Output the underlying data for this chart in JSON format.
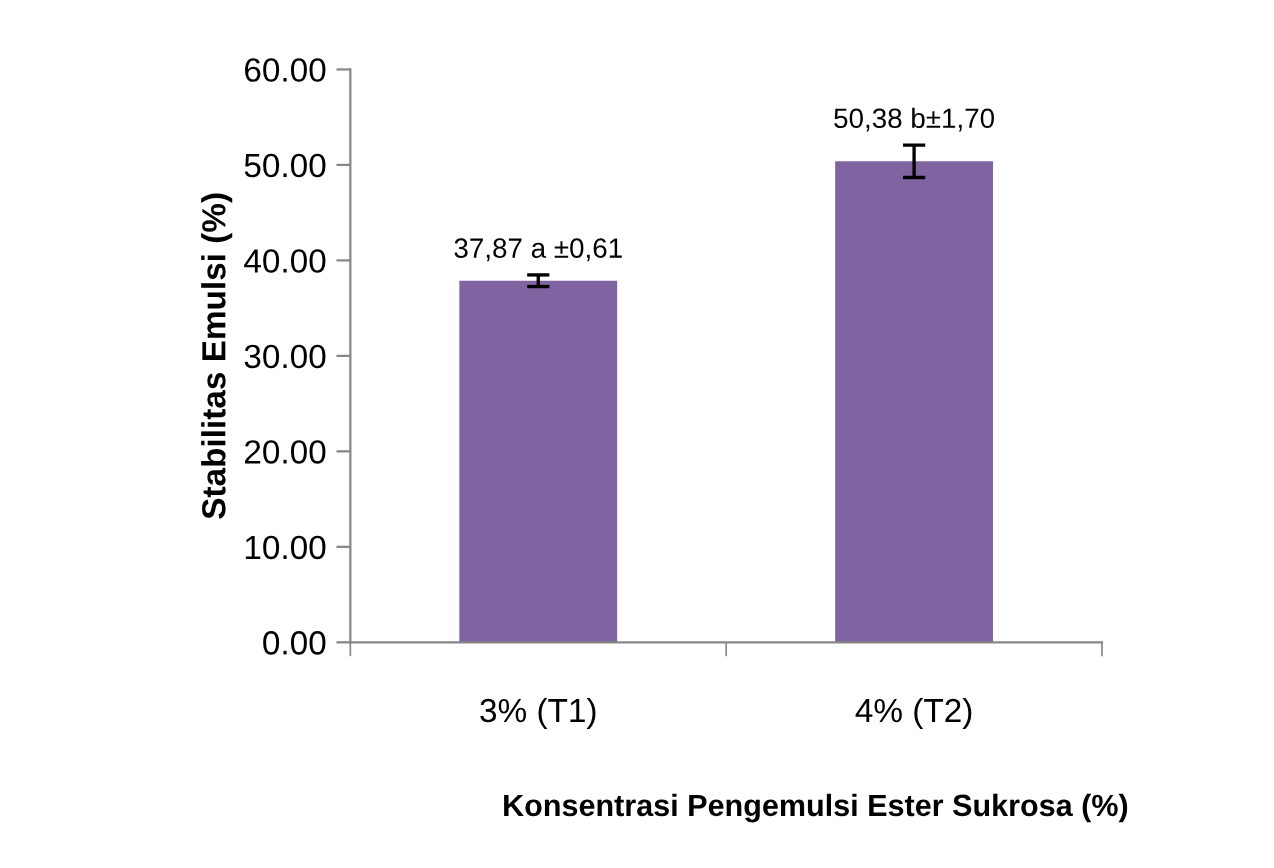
{
  "chart_data": {
    "type": "bar",
    "xlabel": "Konsentrasi Pengemulsi Ester Sukrosa (%)",
    "ylabel": "Stabilitas Emulsi (%)",
    "categories": [
      "3% (T1)",
      "4% (T2)"
    ],
    "values": [
      37.87,
      50.38
    ],
    "errors": [
      0.61,
      1.7
    ],
    "value_labels": [
      "37,87 a ±0,61",
      "50,38 b±1,70"
    ],
    "color": "#8064a2",
    "ylim": [
      0,
      60
    ],
    "yticks": [
      {
        "value": 0,
        "label": "0.00"
      },
      {
        "value": 10,
        "label": "10.00"
      },
      {
        "value": 20,
        "label": "20.00"
      },
      {
        "value": 30,
        "label": "30.00"
      },
      {
        "value": 40,
        "label": "40.00"
      },
      {
        "value": 50,
        "label": "50.00"
      },
      {
        "value": 60,
        "label": "60.00"
      }
    ],
    "grid": false
  }
}
